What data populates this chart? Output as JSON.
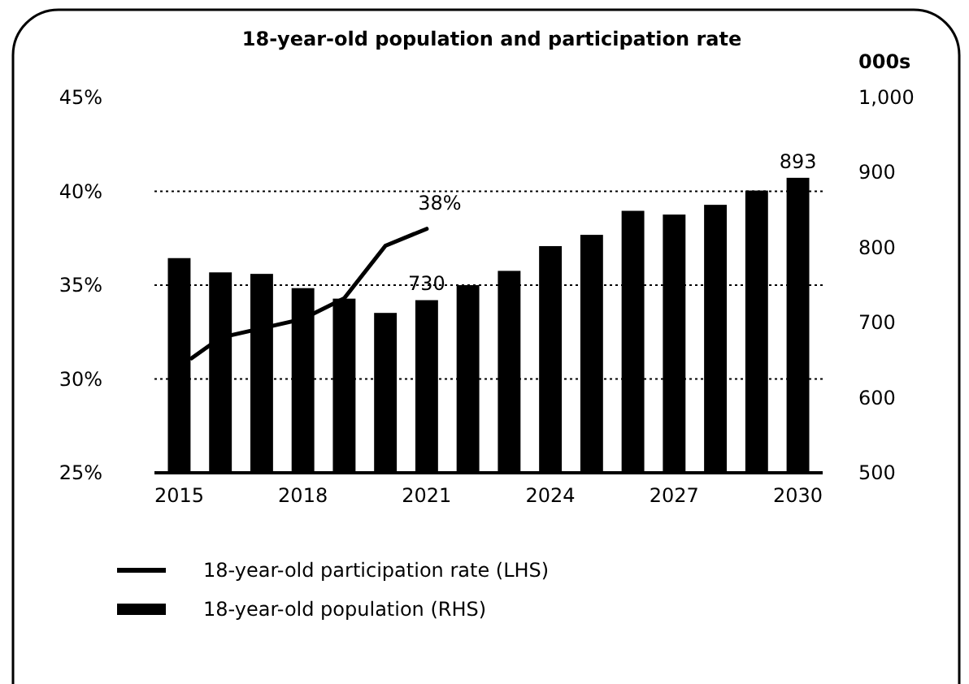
{
  "chart_data": {
    "type": "bar",
    "title": "18-year-old population and participation rate",
    "y2label": "000s",
    "x": [
      2015,
      2016,
      2017,
      2018,
      2019,
      2020,
      2021,
      2022,
      2023,
      2024,
      2025,
      2026,
      2027,
      2028,
      2029,
      2030
    ],
    "xlim": [
      2014.4,
      2030.6
    ],
    "xticks": [
      2015,
      2018,
      2021,
      2024,
      2027,
      2030
    ],
    "ylim": [
      25,
      45
    ],
    "yticks": [
      {
        "value": 25,
        "label": "25%"
      },
      {
        "value": 30,
        "label": "30%"
      },
      {
        "value": 35,
        "label": "35%"
      },
      {
        "value": 40,
        "label": "40%"
      },
      {
        "value": 45,
        "label": "45%"
      }
    ],
    "y2lim": [
      500,
      1000
    ],
    "y2ticks": [
      500,
      600,
      700,
      800,
      900,
      {
        "value": 1000,
        "label": "1,000"
      }
    ],
    "grid": "y",
    "legend": "bottom",
    "series": [
      {
        "name": "18-year-old participation rate (LHS)",
        "type": "line",
        "color": "#000000",
        "x": [
          2015.3,
          2016,
          2017,
          2018,
          2019,
          2020,
          2021
        ],
        "values": [
          31.1,
          32.2,
          32.7,
          33.2,
          34.3,
          37.1,
          38
        ],
        "value_labels": [
          null,
          null,
          null,
          null,
          null,
          null,
          "38%"
        ]
      },
      {
        "name": "18-year-old population (RHS)",
        "axis": "y2",
        "color": "#000000",
        "values": [
          786,
          767,
          765,
          746,
          732,
          713,
          730,
          750,
          769,
          802,
          817,
          849,
          844,
          857,
          876,
          893
        ],
        "value_labels": [
          null,
          null,
          null,
          null,
          null,
          null,
          "730",
          null,
          null,
          null,
          null,
          null,
          null,
          null,
          null,
          "893"
        ]
      }
    ]
  }
}
